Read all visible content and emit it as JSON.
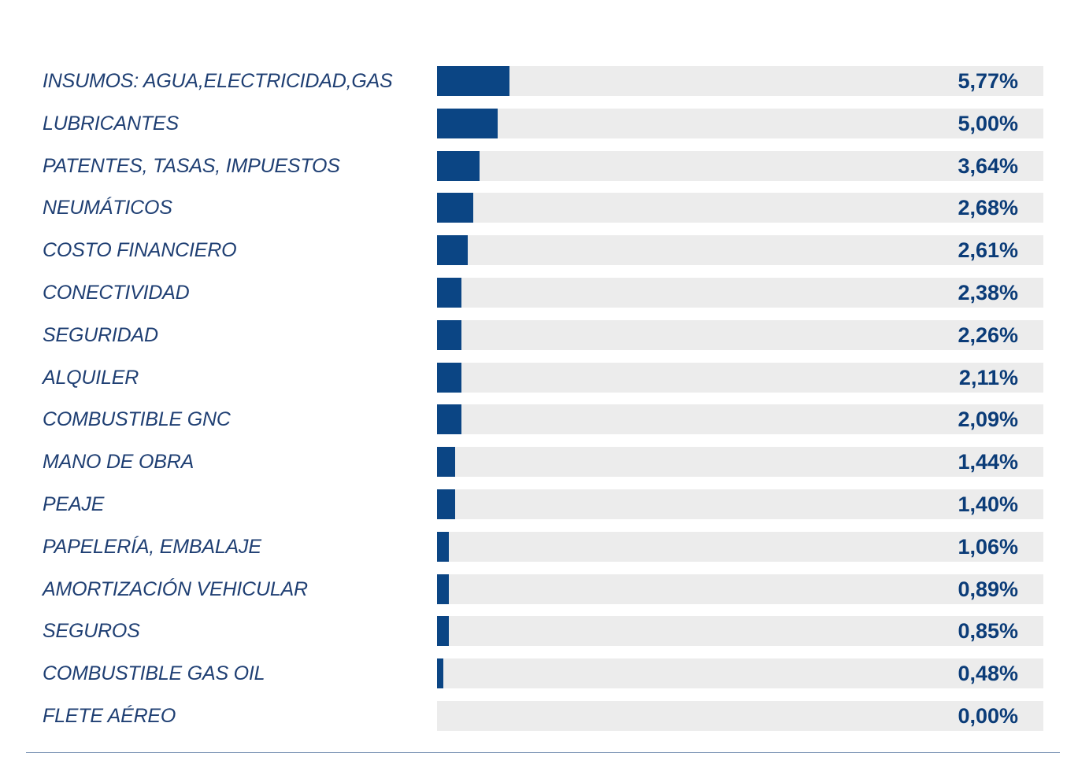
{
  "chart_data": {
    "type": "bar",
    "orientation": "horizontal",
    "title": "",
    "xlabel": "",
    "ylabel": "",
    "value_format": "percent_comma_decimal",
    "colors": {
      "bar": "#0b4584",
      "track": "#ececec",
      "label": "#1f3f73",
      "value": "#0b3c78",
      "rule": "#8aa0bd"
    },
    "categories": [
      "INSUMOS: AGUA,ELECTRICIDAD,GAS",
      "LUBRICANTES",
      "PATENTES, TASAS, IMPUESTOS",
      "NEUMÁTICOS",
      "COSTO FINANCIERO",
      "CONECTIVIDAD",
      "SEGURIDAD",
      "ALQUILER",
      "COMBUSTIBLE GNC",
      "MANO DE OBRA",
      "PEAJE",
      "PAPELERÍA, EMBALAJE",
      "AMORTIZACIÓN VEHICULAR",
      "SEGUROS",
      "COMBUSTIBLE GAS OIL",
      "FLETE AÉREO"
    ],
    "value_labels": [
      "5,77%",
      "5,00%",
      "3,64%",
      "2,68%",
      "2,61%",
      "2,38%",
      "2,26%",
      "2,11%",
      "2,09%",
      "1,44%",
      "1,40%",
      "1,06%",
      "0,89%",
      "0,85%",
      "0,48%",
      "0,00%"
    ],
    "fill_fractions": [
      0.12,
      0.1,
      0.07,
      0.06,
      0.05,
      0.04,
      0.04,
      0.04,
      0.04,
      0.03,
      0.03,
      0.02,
      0.02,
      0.02,
      0.01,
      0.0
    ]
  }
}
